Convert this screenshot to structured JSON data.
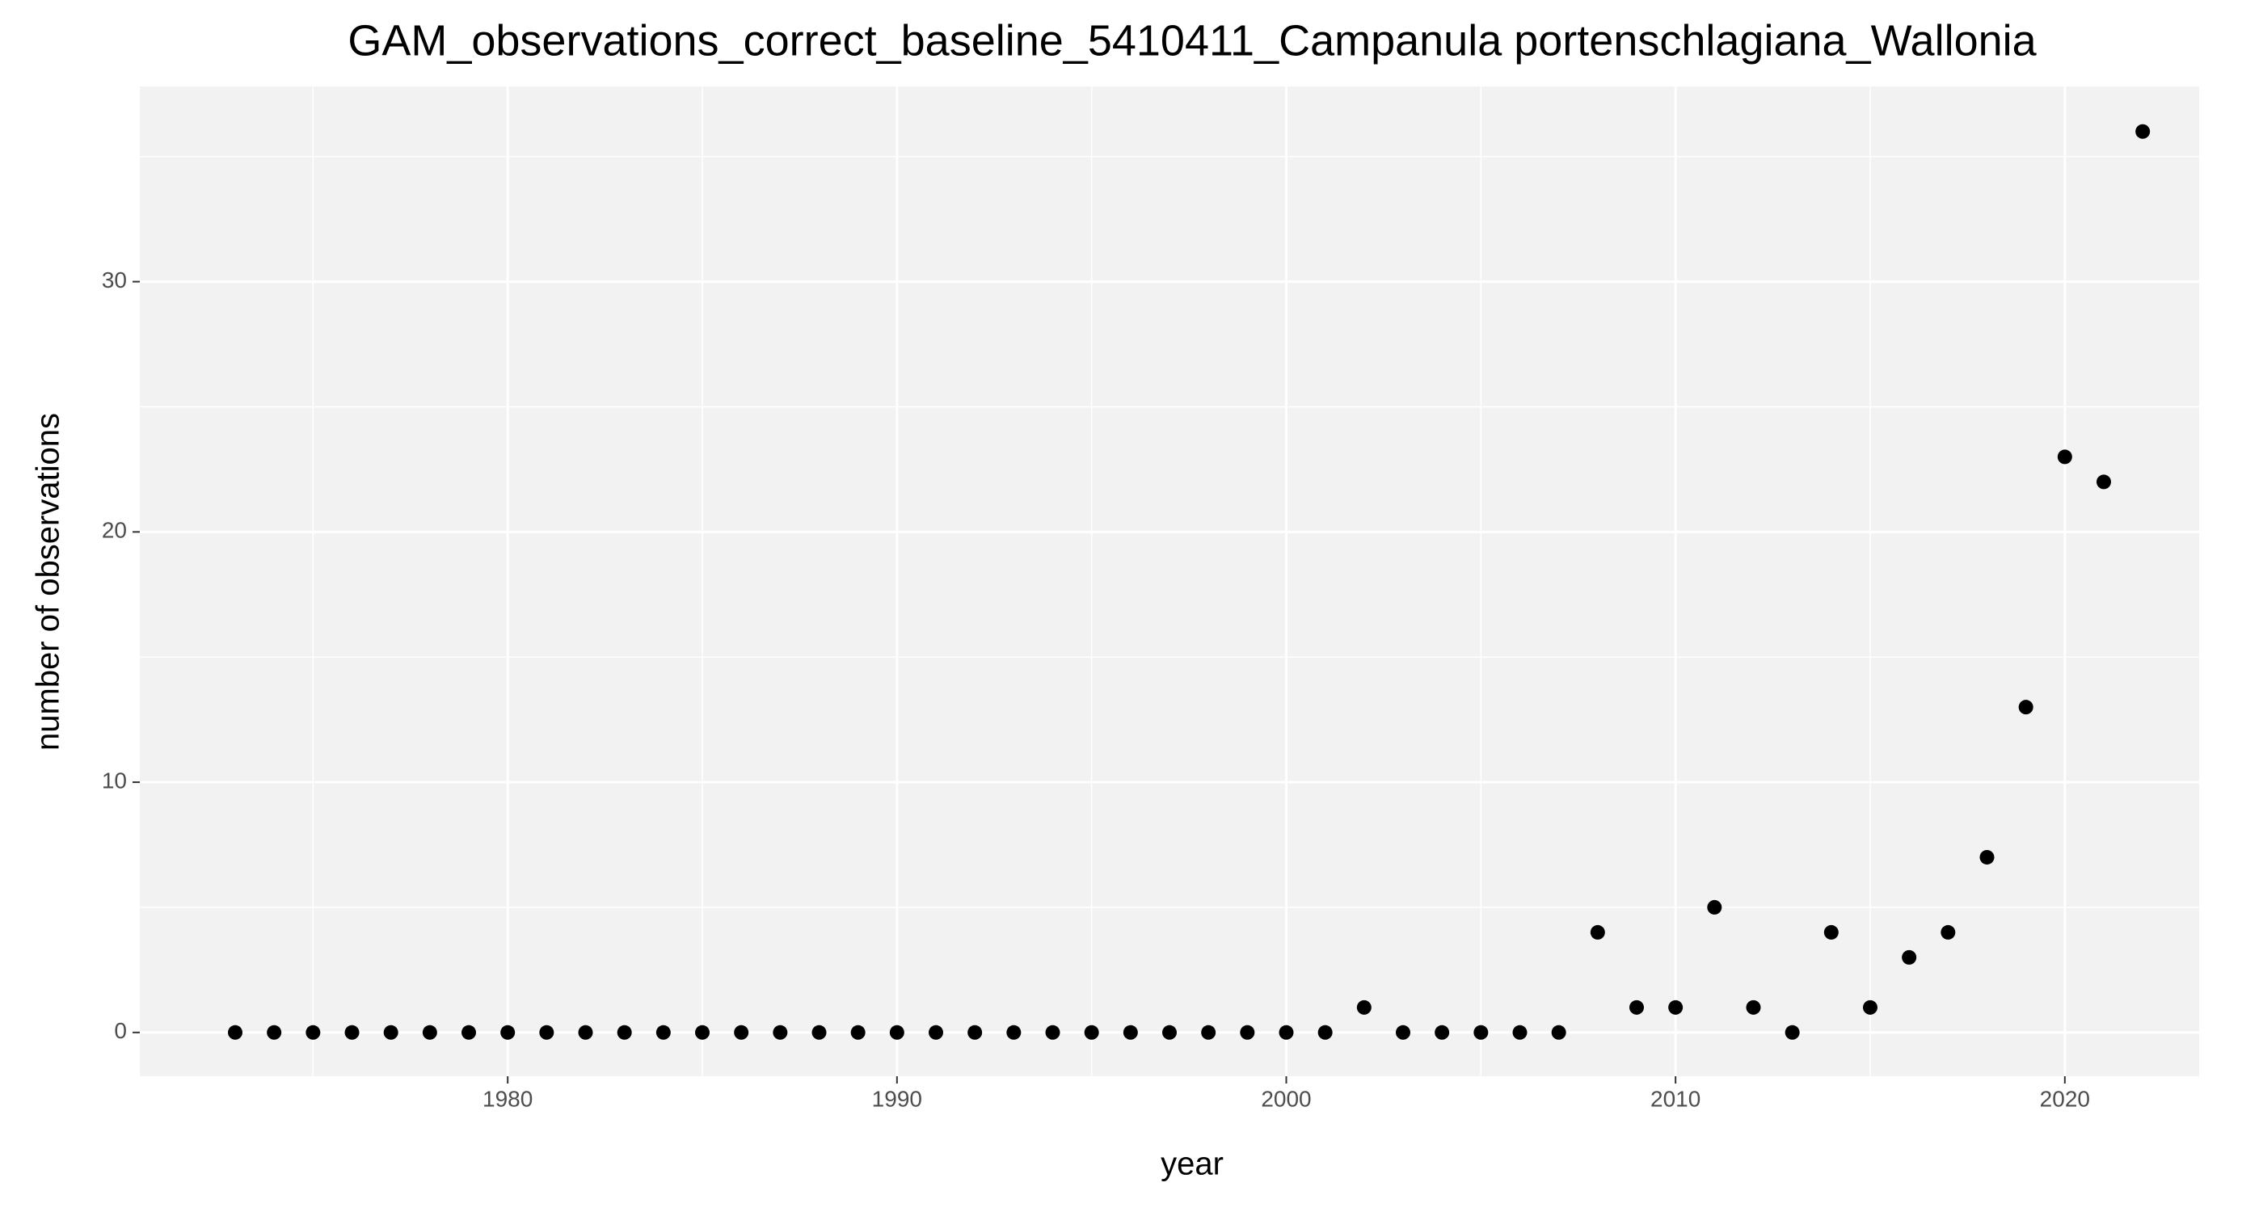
{
  "chart_data": {
    "type": "scatter",
    "title": "GAM_observations_correct_baseline_5410411_Campanula portenschlagiana_Wallonia",
    "x_label": "year",
    "y_label": "number of observations",
    "x": [
      1973,
      1974,
      1975,
      1976,
      1977,
      1978,
      1979,
      1980,
      1981,
      1982,
      1983,
      1984,
      1985,
      1986,
      1987,
      1988,
      1989,
      1990,
      1991,
      1992,
      1993,
      1994,
      1995,
      1996,
      1997,
      1998,
      1999,
      2000,
      2001,
      2002,
      2003,
      2004,
      2005,
      2006,
      2007,
      2008,
      2009,
      2010,
      2011,
      2012,
      2013,
      2014,
      2015,
      2016,
      2017,
      2018,
      2019,
      2020,
      2021,
      2022
    ],
    "values": [
      0,
      0,
      0,
      0,
      0,
      0,
      0,
      0,
      0,
      0,
      0,
      0,
      0,
      0,
      0,
      0,
      0,
      0,
      0,
      0,
      0,
      0,
      0,
      0,
      0,
      0,
      0,
      0,
      0,
      1,
      0,
      0,
      0,
      0,
      0,
      4,
      1,
      1,
      5,
      1,
      0,
      4,
      1,
      3,
      4,
      7,
      13,
      23,
      22,
      36
    ],
    "color": "#000000",
    "xlim": [
      1970.55,
      2023.45
    ],
    "xticks": [
      1980,
      1990,
      2000,
      2010,
      2020
    ],
    "ylim": [
      -1.75,
      37.8
    ],
    "yticks": [
      0,
      10,
      20,
      30
    ],
    "grid": true
  }
}
